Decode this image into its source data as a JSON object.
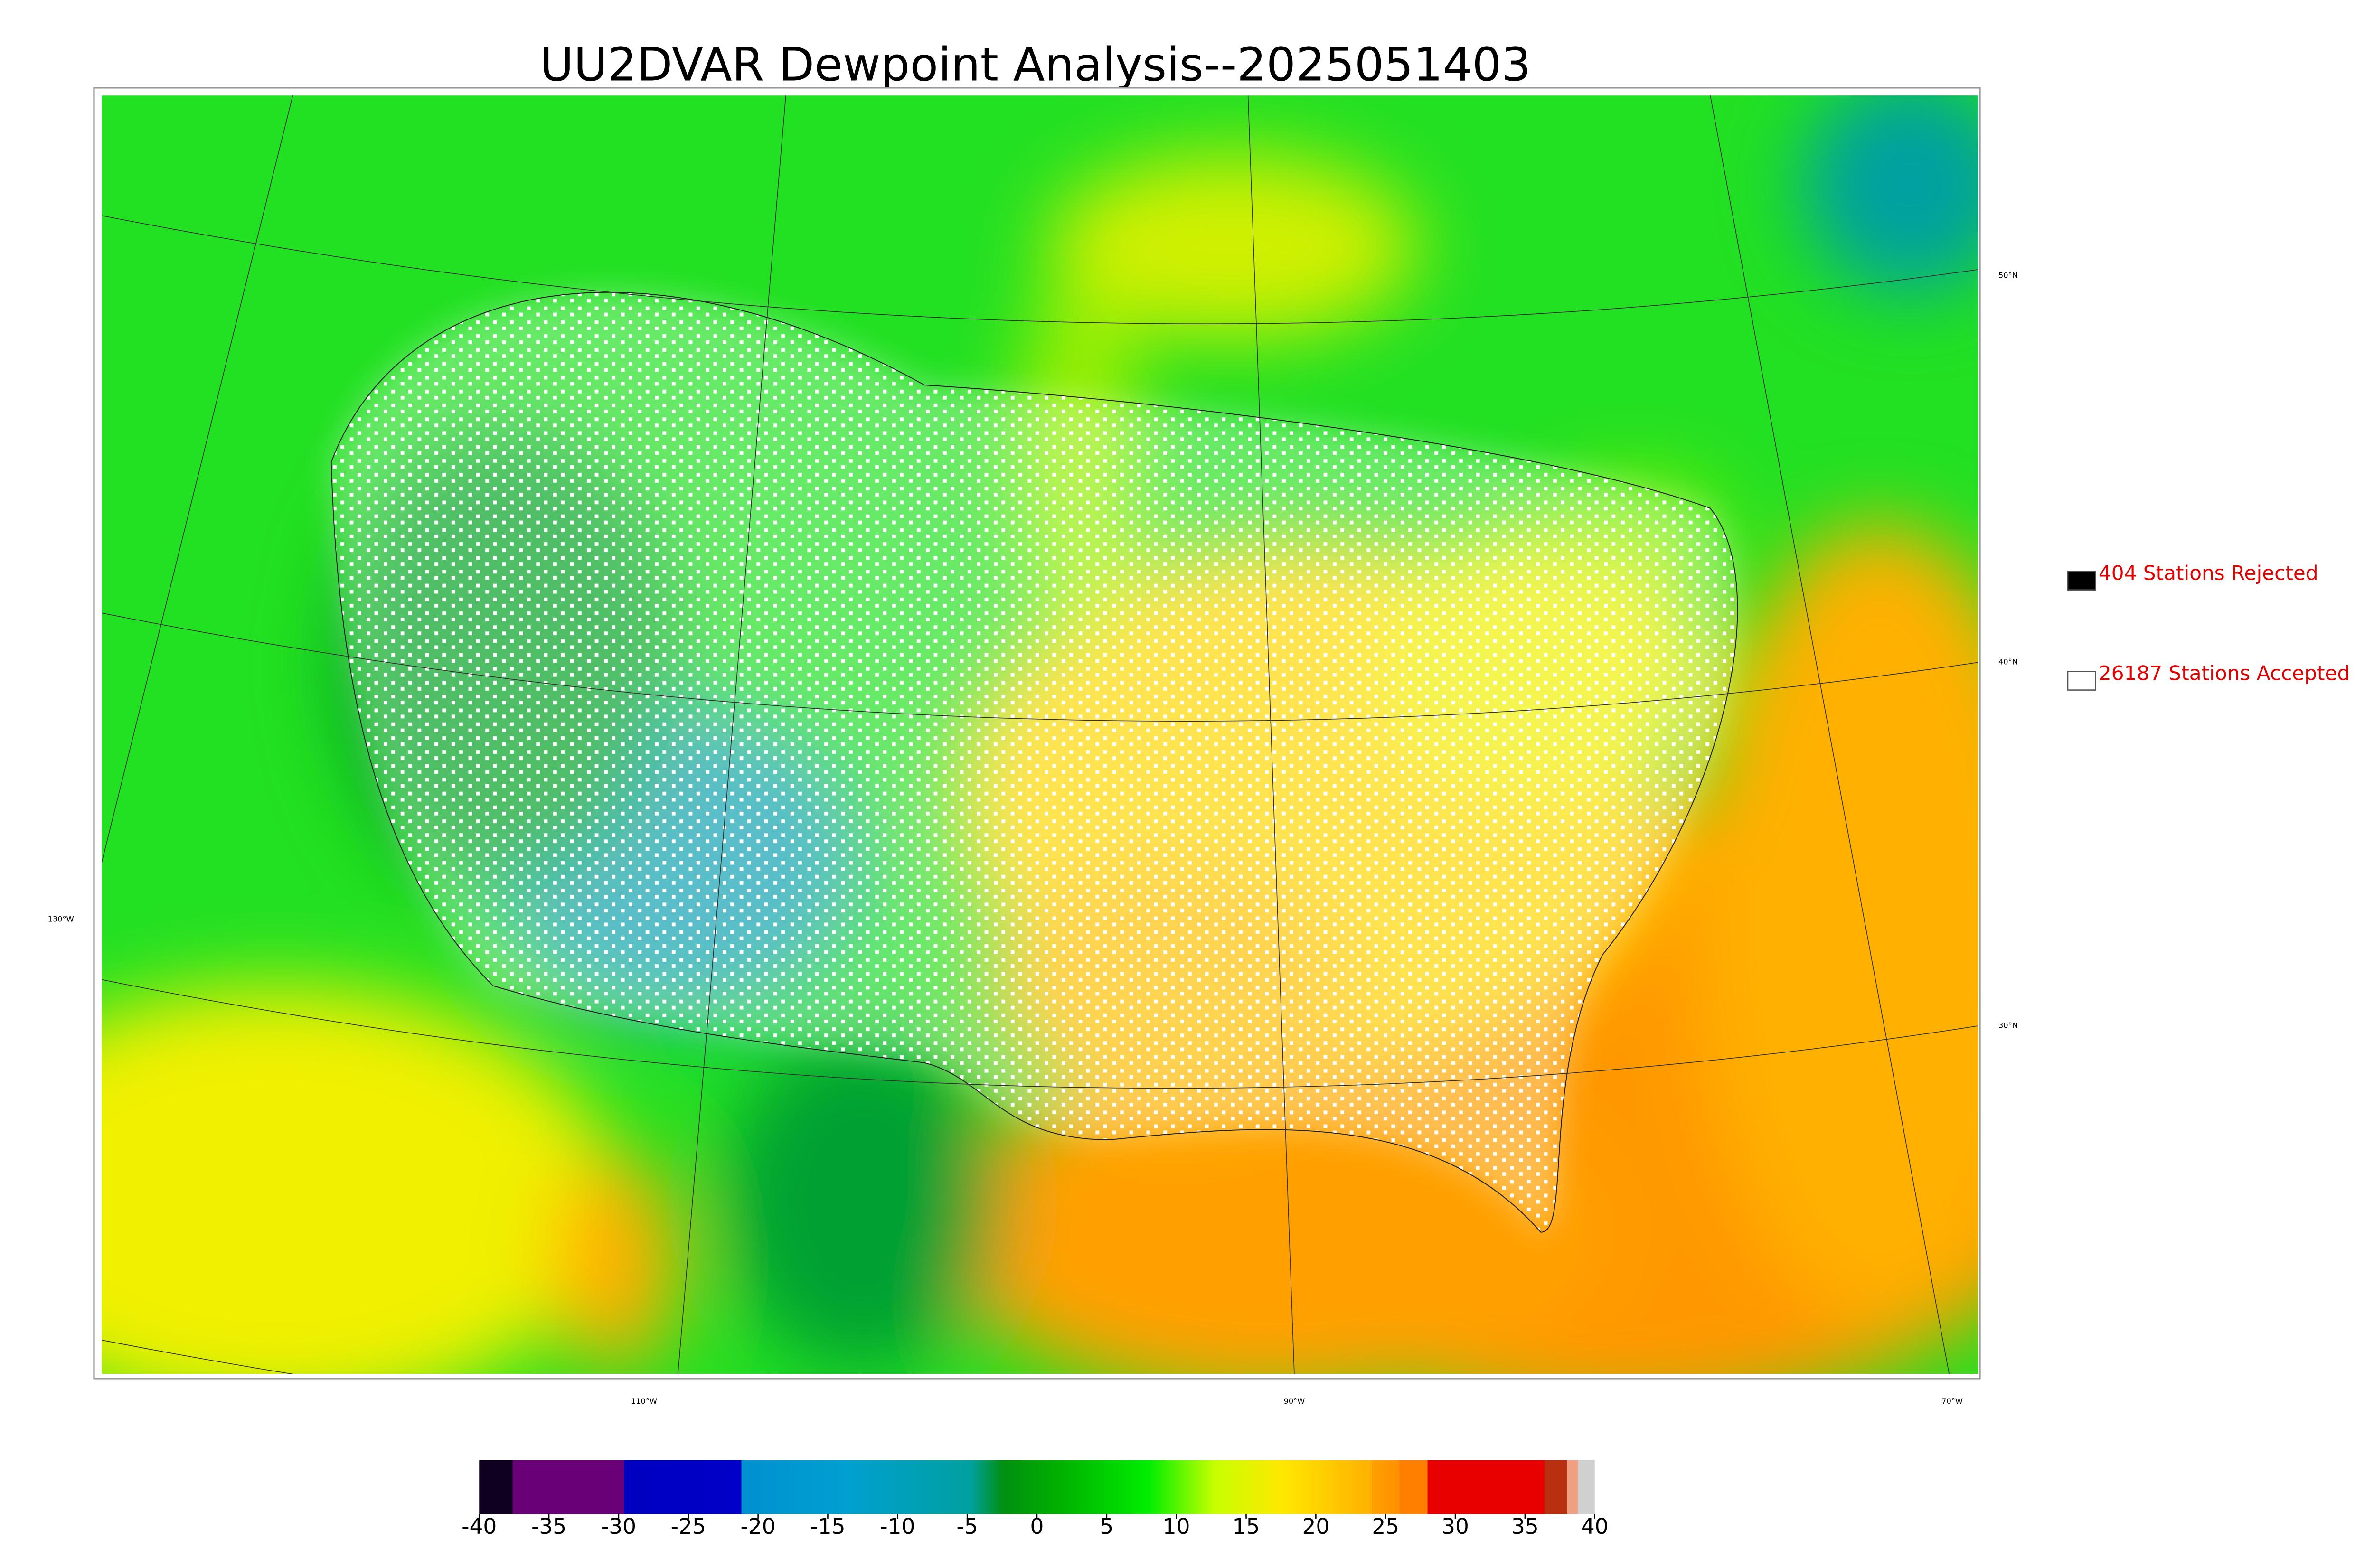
{
  "title": "UU2DVAR Dewpoint Analysis--2025051403",
  "legend": [
    {
      "label": "404 Stations Rejected",
      "color": "#000000"
    },
    {
      "label": "26187 Stations Accepted",
      "color": "#ffffff"
    }
  ],
  "map": {
    "lat_labels": [
      "50°N",
      "40°N",
      "30°N",
      "130°W"
    ],
    "lon_labels": [
      "110°W",
      "90°W",
      "70°W"
    ]
  },
  "colorbar": {
    "range": [
      -40,
      40
    ],
    "ticks": [
      -40,
      -35,
      -30,
      -25,
      -20,
      -15,
      -10,
      -5,
      0,
      5,
      10,
      15,
      20,
      25,
      30,
      35,
      40
    ]
  }
}
